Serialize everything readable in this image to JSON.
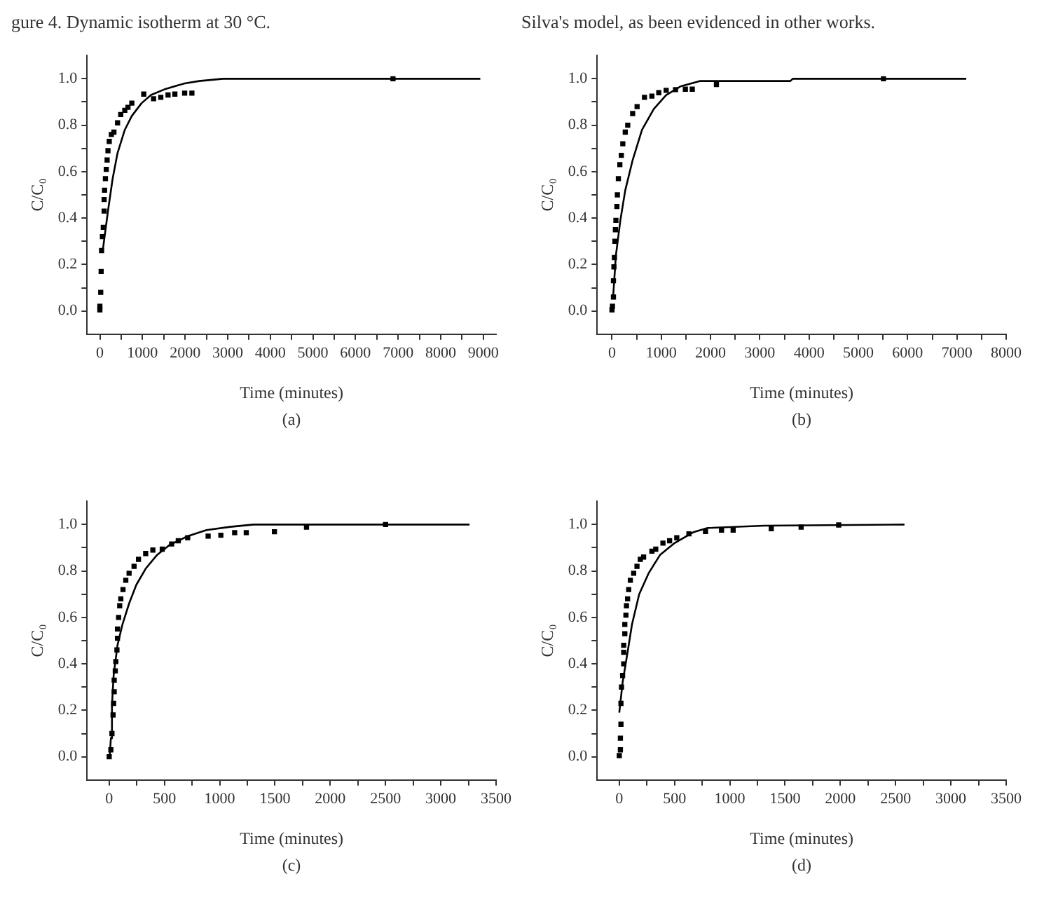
{
  "chart_data": [
    {
      "type": "scatter",
      "xlabel": "Time (minutes)",
      "ylabel": "C/C₀",
      "marker": "square",
      "annotations": [
        "gure 4. Dynamic isotherm at 30 °C.",
        "(a)"
      ],
      "xlim": [
        -300,
        9300
      ],
      "xticks": [
        0,
        {
          "value": 500,
          "label": null
        },
        1000,
        {
          "value": 1500,
          "label": null
        },
        2000,
        {
          "value": 2500,
          "label": null
        },
        3000,
        {
          "value": 3500,
          "label": null
        },
        4000,
        {
          "value": 4500,
          "label": null
        },
        5000,
        {
          "value": 5500,
          "label": null
        },
        6000,
        {
          "value": 6500,
          "label": null
        },
        7000,
        {
          "value": 7500,
          "label": null
        },
        8000,
        {
          "value": 8500,
          "label": null
        },
        9000
      ],
      "ylim": [
        -0.1,
        1.1
      ],
      "yticks": [
        {
          "value": 0,
          "label": "0.0"
        },
        {
          "value": 0.1,
          "label": null
        },
        {
          "value": 0.2,
          "label": "0.2"
        },
        {
          "value": 0.3,
          "label": null
        },
        {
          "value": 0.4,
          "label": "0.4"
        },
        {
          "value": 0.5,
          "label": null
        },
        {
          "value": 0.6,
          "label": "0.6"
        },
        {
          "value": 0.7,
          "label": null
        },
        {
          "value": 0.8,
          "label": "0.8"
        },
        {
          "value": 0.9,
          "label": null
        },
        {
          "value": 1,
          "label": "1.0"
        }
      ],
      "series": [
        {
          "type": "scatter",
          "color": "#000000",
          "x": [
            0,
            0,
            20,
            30,
            40,
            60,
            80,
            100,
            100,
            110,
            130,
            150,
            170,
            190,
            220,
            270,
            330,
            415,
            490,
            585,
            660,
            750,
            1030,
            1260,
            1430,
            1600,
            1760,
            1990,
            2160,
            6880
          ],
          "values": [
            0.005,
            0.02,
            0.08,
            0.17,
            0.26,
            0.32,
            0.36,
            0.43,
            0.48,
            0.52,
            0.57,
            0.61,
            0.65,
            0.69,
            0.73,
            0.76,
            0.77,
            0.81,
            0.846,
            0.864,
            0.877,
            0.895,
            0.934,
            0.914,
            0.92,
            0.93,
            0.934,
            0.938,
            0.938,
            1.0
          ]
        },
        {
          "type": "line",
          "color": "#000000",
          "marker": "none",
          "x": [
            60,
            190,
            300,
            415,
            585,
            750,
            980,
            1200,
            1540,
            1990,
            2330,
            2890,
            8930
          ],
          "values": [
            0.25,
            0.43,
            0.57,
            0.68,
            0.78,
            0.84,
            0.895,
            0.93,
            0.956,
            0.98,
            0.99,
            1.0,
            1.0
          ]
        }
      ]
    },
    {
      "type": "scatter",
      "xlabel": "Time (minutes)",
      "ylabel": "C/C₀",
      "marker": "square",
      "annotations": [
        "Silva's model, as been evidenced in other works.",
        "(b)"
      ],
      "xlim": [
        -300,
        8000
      ],
      "xticks": [
        0,
        {
          "value": 500,
          "label": null
        },
        1000,
        {
          "value": 1500,
          "label": null
        },
        2000,
        {
          "value": 2500,
          "label": null
        },
        3000,
        {
          "value": 3500,
          "label": null
        },
        4000,
        {
          "value": 4500,
          "label": null
        },
        5000,
        {
          "value": 5500,
          "label": null
        },
        6000,
        {
          "value": 6500,
          "label": null
        },
        7000,
        {
          "value": 7500,
          "label": null
        },
        8000
      ],
      "ylim": [
        -0.1,
        1.1
      ],
      "yticks": [
        {
          "value": 0,
          "label": "0.0"
        },
        {
          "value": 0.1,
          "label": null
        },
        {
          "value": 0.2,
          "label": "0.2"
        },
        {
          "value": 0.3,
          "label": null
        },
        {
          "value": 0.4,
          "label": "0.4"
        },
        {
          "value": 0.5,
          "label": null
        },
        {
          "value": 0.6,
          "label": "0.6"
        },
        {
          "value": 0.7,
          "label": null
        },
        {
          "value": 0.8,
          "label": "0.8"
        },
        {
          "value": 0.9,
          "label": null
        },
        {
          "value": 1,
          "label": "1.0"
        }
      ],
      "series": [
        {
          "type": "scatter",
          "color": "#000000",
          "x": [
            0,
            10,
            30,
            30,
            40,
            50,
            60,
            70,
            80,
            100,
            110,
            130,
            160,
            190,
            220,
            270,
            320,
            420,
            510,
            660,
            810,
            950,
            1100,
            1290,
            1490,
            1630,
            2120,
            5510
          ],
          "values": [
            0.005,
            0.02,
            0.06,
            0.13,
            0.19,
            0.23,
            0.3,
            0.35,
            0.39,
            0.45,
            0.5,
            0.57,
            0.63,
            0.67,
            0.72,
            0.77,
            0.8,
            0.85,
            0.88,
            0.92,
            0.925,
            0.94,
            0.95,
            0.953,
            0.955,
            0.955,
            0.975,
            1.0
          ]
        },
        {
          "type": "line",
          "color": "#000000",
          "marker": "none",
          "x": [
            20,
            80,
            170,
            270,
            420,
            610,
            850,
            1100,
            1390,
            1780,
            3620,
            3670,
            7190
          ],
          "values": [
            0.05,
            0.24,
            0.39,
            0.52,
            0.65,
            0.78,
            0.87,
            0.93,
            0.967,
            0.99,
            0.99,
            1.0,
            1.0
          ]
        }
      ]
    },
    {
      "type": "scatter",
      "xlabel": "Time (minutes)",
      "ylabel": "C/C₀",
      "marker": "square",
      "annotations": [
        "(c)"
      ],
      "xlim": [
        -200,
        3500
      ],
      "xticks": [
        0,
        {
          "value": 250,
          "label": null
        },
        500,
        {
          "value": 750,
          "label": null
        },
        1000,
        {
          "value": 1250,
          "label": null
        },
        1500,
        {
          "value": 1750,
          "label": null
        },
        2000,
        {
          "value": 2250,
          "label": null
        },
        2500,
        {
          "value": 2750,
          "label": null
        },
        3000,
        {
          "value": 3250,
          "label": null
        },
        3500
      ],
      "ylim": [
        -0.1,
        1.1
      ],
      "yticks": [
        {
          "value": 0,
          "label": "0.0"
        },
        {
          "value": 0.1,
          "label": null
        },
        {
          "value": 0.2,
          "label": "0.2"
        },
        {
          "value": 0.3,
          "label": null
        },
        {
          "value": 0.4,
          "label": "0.4"
        },
        {
          "value": 0.5,
          "label": null
        },
        {
          "value": 0.6,
          "label": "0.6"
        },
        {
          "value": 0.7,
          "label": null
        },
        {
          "value": 0.8,
          "label": "0.8"
        },
        {
          "value": 0.9,
          "label": null
        },
        {
          "value": 1,
          "label": "1.0"
        }
      ],
      "series": [
        {
          "type": "scatter",
          "color": "#000000",
          "x": [
            0,
            15,
            25,
            35,
            40,
            45,
            45,
            55,
            60,
            70,
            75,
            75,
            85,
            95,
            105,
            125,
            150,
            180,
            225,
            265,
            330,
            395,
            480,
            565,
            625,
            710,
            895,
            1010,
            1135,
            1240,
            1495,
            1785,
            2500
          ],
          "values": [
            0.0,
            0.03,
            0.1,
            0.18,
            0.23,
            0.28,
            0.33,
            0.37,
            0.41,
            0.46,
            0.51,
            0.55,
            0.6,
            0.65,
            0.68,
            0.72,
            0.76,
            0.79,
            0.82,
            0.85,
            0.875,
            0.89,
            0.894,
            0.916,
            0.93,
            0.943,
            0.95,
            0.954,
            0.965,
            0.965,
            0.969,
            0.989,
            1.0
          ]
        },
        {
          "type": "line",
          "color": "#000000",
          "marker": "none",
          "x": [
            5,
            15,
            25,
            40,
            75,
            120,
            180,
            245,
            330,
            435,
            540,
            710,
            880,
            1095,
            1305,
            3260
          ],
          "values": [
            0.0,
            0.08,
            0.22,
            0.35,
            0.48,
            0.57,
            0.66,
            0.74,
            0.81,
            0.87,
            0.91,
            0.95,
            0.976,
            0.99,
            1.0,
            1.0
          ]
        }
      ]
    },
    {
      "type": "scatter",
      "xlabel": "Time (minutes)",
      "ylabel": "C/C₀",
      "marker": "square",
      "annotations": [
        "(d)"
      ],
      "xlim": [
        -200,
        3500
      ],
      "xticks": [
        0,
        {
          "value": 250,
          "label": null
        },
        500,
        {
          "value": 750,
          "label": null
        },
        1000,
        {
          "value": 1250,
          "label": null
        },
        1500,
        {
          "value": 1750,
          "label": null
        },
        2000,
        {
          "value": 2250,
          "label": null
        },
        2500,
        {
          "value": 2750,
          "label": null
        },
        3000,
        {
          "value": 3250,
          "label": null
        },
        3500
      ],
      "ylim": [
        -0.1,
        1.1
      ],
      "yticks": [
        {
          "value": 0,
          "label": "0.0"
        },
        {
          "value": 0.1,
          "label": null
        },
        {
          "value": 0.2,
          "label": "0.2"
        },
        {
          "value": 0.3,
          "label": null
        },
        {
          "value": 0.4,
          "label": "0.4"
        },
        {
          "value": 0.5,
          "label": null
        },
        {
          "value": 0.6,
          "label": "0.6"
        },
        {
          "value": 0.7,
          "label": null
        },
        {
          "value": 0.8,
          "label": "0.8"
        },
        {
          "value": 0.9,
          "label": null
        },
        {
          "value": 1,
          "label": "1.0"
        }
      ],
      "series": [
        {
          "type": "scatter",
          "color": "#000000",
          "x": [
            0,
            10,
            10,
            15,
            15,
            20,
            30,
            40,
            40,
            40,
            50,
            50,
            60,
            65,
            75,
            85,
            100,
            130,
            160,
            190,
            220,
            295,
            330,
            395,
            455,
            520,
            630,
            780,
            925,
            1030,
            1375,
            1645,
            1985
          ],
          "values": [
            0.005,
            0.03,
            0.08,
            0.14,
            0.23,
            0.3,
            0.35,
            0.4,
            0.45,
            0.48,
            0.53,
            0.57,
            0.61,
            0.65,
            0.68,
            0.72,
            0.76,
            0.79,
            0.82,
            0.85,
            0.86,
            0.885,
            0.894,
            0.92,
            0.93,
            0.943,
            0.96,
            0.97,
            0.976,
            0.976,
            0.982,
            0.989,
            0.998
          ]
        },
        {
          "type": "line",
          "color": "#000000",
          "marker": "none",
          "x": [
            0,
            30,
            75,
            115,
            180,
            265,
            370,
            500,
            670,
            800,
            1310,
            2580
          ],
          "values": [
            0.19,
            0.32,
            0.45,
            0.57,
            0.7,
            0.79,
            0.87,
            0.92,
            0.967,
            0.985,
            0.995,
            1.0
          ]
        }
      ]
    }
  ]
}
